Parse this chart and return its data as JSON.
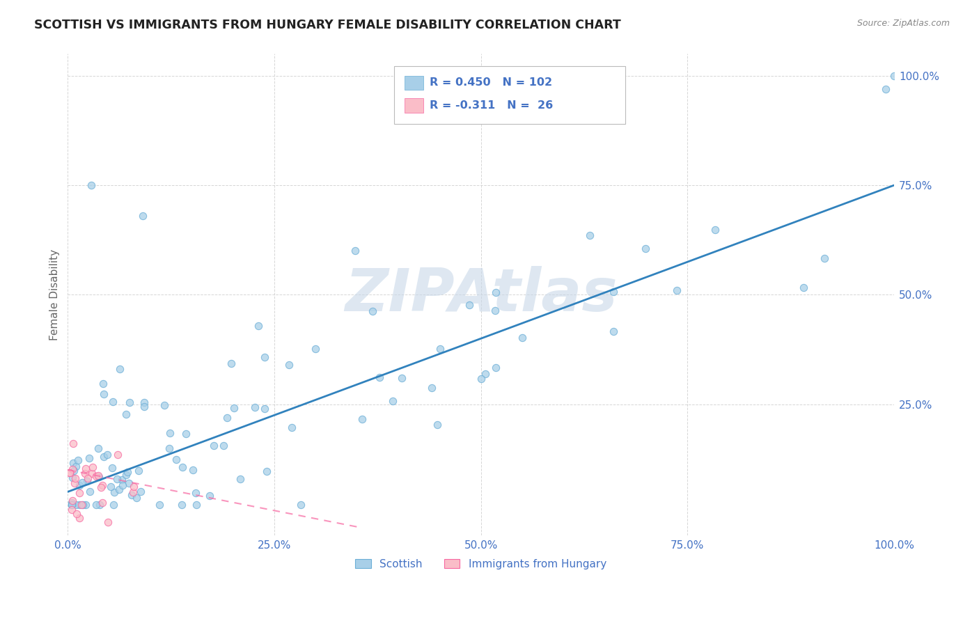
{
  "title": "SCOTTISH VS IMMIGRANTS FROM HUNGARY FEMALE DISABILITY CORRELATION CHART",
  "source": "Source: ZipAtlas.com",
  "ylabel": "Female Disability",
  "xlim": [
    0.0,
    1.0
  ],
  "ylim": [
    -0.05,
    1.05
  ],
  "xticks": [
    0.0,
    0.25,
    0.5,
    0.75,
    1.0
  ],
  "yticks": [
    0.25,
    0.5,
    0.75,
    1.0
  ],
  "xticklabels": [
    "0.0%",
    "25.0%",
    "50.0%",
    "75.0%",
    "100.0%"
  ],
  "yticklabels_right": [
    "25.0%",
    "50.0%",
    "75.0%",
    "100.0%"
  ],
  "scottish_color": "#a8cfe8",
  "scottish_edge": "#6baed6",
  "hungary_color": "#fabdc8",
  "hungary_edge": "#f768a1",
  "trend_blue": "#3182bd",
  "trend_pink": "#f768a1",
  "R_scottish": 0.45,
  "N_scottish": 102,
  "R_hungary": -0.311,
  "N_hungary": 26,
  "watermark": "ZIPAtlas",
  "watermark_color": "#c8d8e8",
  "legend_labels": [
    "Scottish",
    "Immigrants from Hungary"
  ],
  "legend_box_color": "#a8cfe8",
  "legend_box_color2": "#fabdc8",
  "tick_color": "#4472c4",
  "ylabel_color": "#666666",
  "title_color": "#222222",
  "source_color": "#888888",
  "grid_color": "#cccccc",
  "bg_color": "#ffffff",
  "blue_line_x0": 0.0,
  "blue_line_y0": 0.05,
  "blue_line_x1": 1.0,
  "blue_line_y1": 0.75,
  "pink_line_x0": 0.0,
  "pink_line_y0": 0.1,
  "pink_line_x1": 0.35,
  "pink_line_y1": -0.03
}
